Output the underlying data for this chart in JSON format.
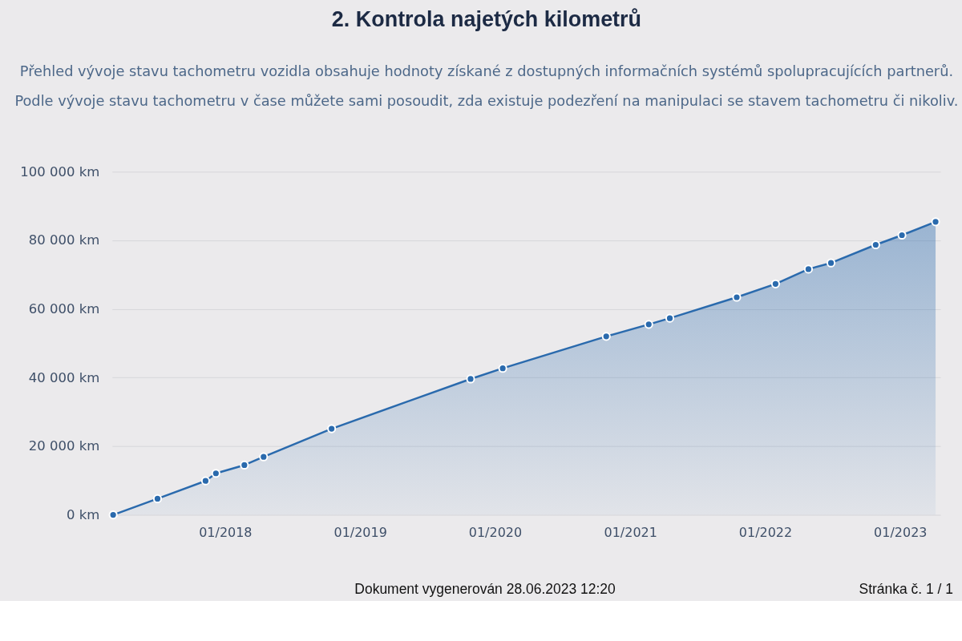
{
  "chart_data": {
    "type": "area",
    "title": "2. Kontrola najetých kilometrů",
    "subtitle": "Přehled vývoje stavu tachometru vozidla obsahuje hodnoty získané z dostupných informačních systémů spolupracujících partnerů.\nPodle vývoje stavu tachometru v čase můžete sami posoudit, zda existuje podezření na manipulaci se stavem tachometru či nikoliv.",
    "x": [
      "2017-03-04",
      "2017-07-02",
      "2017-11-09",
      "2017-12-07",
      "2018-02-22",
      "2018-04-15",
      "2018-10-16",
      "2019-10-27",
      "2020-01-22",
      "2020-10-28",
      "2021-02-20",
      "2021-04-18",
      "2021-10-16",
      "2022-01-29",
      "2022-04-28",
      "2022-06-28",
      "2022-10-27",
      "2023-01-06",
      "2023-04-07"
    ],
    "values": [
      0,
      4700,
      9900,
      12100,
      14500,
      16900,
      25100,
      39600,
      42700,
      52000,
      55500,
      57300,
      63400,
      67300,
      71600,
      73400,
      78700,
      81500,
      85400
    ],
    "color": "#2a6aad",
    "marker": "circle",
    "grid": "y",
    "xlim": [
      "2017-03-01",
      "2023-04-20"
    ],
    "xticks": [
      {
        "value": "2018-01",
        "label": "01/2018"
      },
      {
        "value": "2019-01",
        "label": "01/2019"
      },
      {
        "value": "2020-01",
        "label": "01/2020"
      },
      {
        "value": "2021-01",
        "label": "01/2021"
      },
      {
        "value": "2022-01",
        "label": "01/2022"
      },
      {
        "value": "2023-01",
        "label": "01/2023"
      }
    ],
    "ylim": [
      0,
      100000
    ],
    "yticks": [
      {
        "value": 0,
        "label": "0 km"
      },
      {
        "value": 20000,
        "label": "20 000 km"
      },
      {
        "value": 40000,
        "label": "40 000 km"
      },
      {
        "value": 60000,
        "label": "60 000 km"
      },
      {
        "value": 80000,
        "label": "80 000 km"
      },
      {
        "value": 100000,
        "label": "100 000 km"
      }
    ],
    "annotations": [
      "Dokument vygenerován 28.06.2023 12:20",
      "Stránka č. 1 / 1"
    ]
  }
}
